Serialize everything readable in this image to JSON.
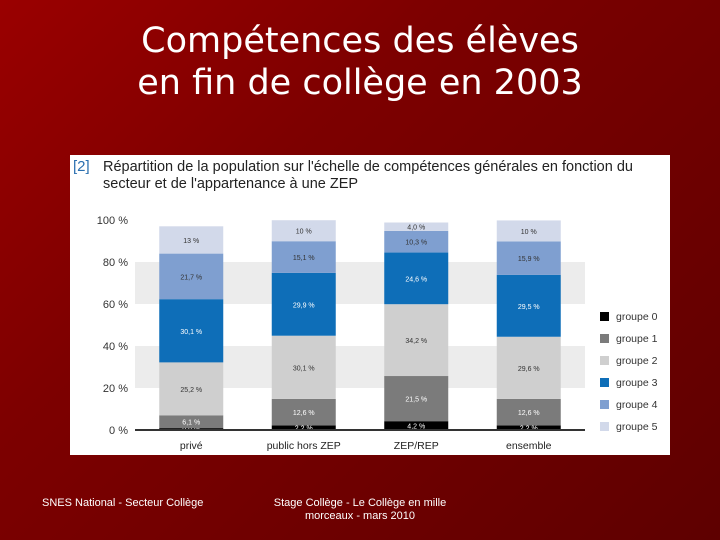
{
  "slide": {
    "title_line1": "Compétences des élèves",
    "title_line2": "en fin de collège en 2003",
    "footer_left": "SNES National - Secteur Collège",
    "footer_center": "Stage Collège - Le Collège en mille morceaux - mars 2010"
  },
  "chart_data": {
    "type": "bar",
    "stacked": true,
    "figure_number": "[2]",
    "title": "Répartition de la population sur l'échelle de compétences générales en fonction du secteur et de l'appartenance à une ZEP",
    "categories": [
      "privé",
      "public hors ZEP",
      "ZEP/REP",
      "ensemble"
    ],
    "ylim": [
      0,
      100
    ],
    "yticks": [
      "0 %",
      "20 %",
      "40 %",
      "60 %",
      "80 %",
      "100 %"
    ],
    "grid_bands": true,
    "legend_position": "right",
    "series": [
      {
        "name": "groupe 0",
        "color": "#000000",
        "values": [
          0.9,
          2.2,
          4.2,
          2.2
        ],
        "labels": [
          "0,9 %",
          "2,2 %",
          "4,2 %",
          "2,2 %"
        ]
      },
      {
        "name": "groupe 1",
        "color": "#7b7b7b",
        "values": [
          6.1,
          12.6,
          21.5,
          12.6
        ],
        "labels": [
          "6,1 %",
          "12,6 %",
          "21,5 %",
          "12,6 %"
        ]
      },
      {
        "name": "groupe 2",
        "color": "#cfcfcf",
        "values": [
          25.2,
          30.1,
          34.2,
          29.6
        ],
        "labels": [
          "25,2 %",
          "30,1 %",
          "34,2 %",
          "29,6 %"
        ]
      },
      {
        "name": "groupe 3",
        "color": "#0e6eb8",
        "values": [
          30.1,
          29.9,
          24.6,
          29.5
        ],
        "labels": [
          "30,1 %",
          "29,9 %",
          "24,6 %",
          "29,5 %"
        ]
      },
      {
        "name": "groupe 4",
        "color": "#7f9fd0",
        "values": [
          21.7,
          15.1,
          10.3,
          15.9
        ],
        "labels": [
          "21,7 %",
          "15,1 %",
          "10,3 %",
          "15,9 %"
        ]
      },
      {
        "name": "groupe 5",
        "color": "#d2d9ea",
        "values": [
          13.0,
          10.0,
          4.0,
          10.0
        ],
        "labels": [
          "13 %",
          "10 %",
          "4,0 %",
          "10 %"
        ]
      }
    ]
  }
}
